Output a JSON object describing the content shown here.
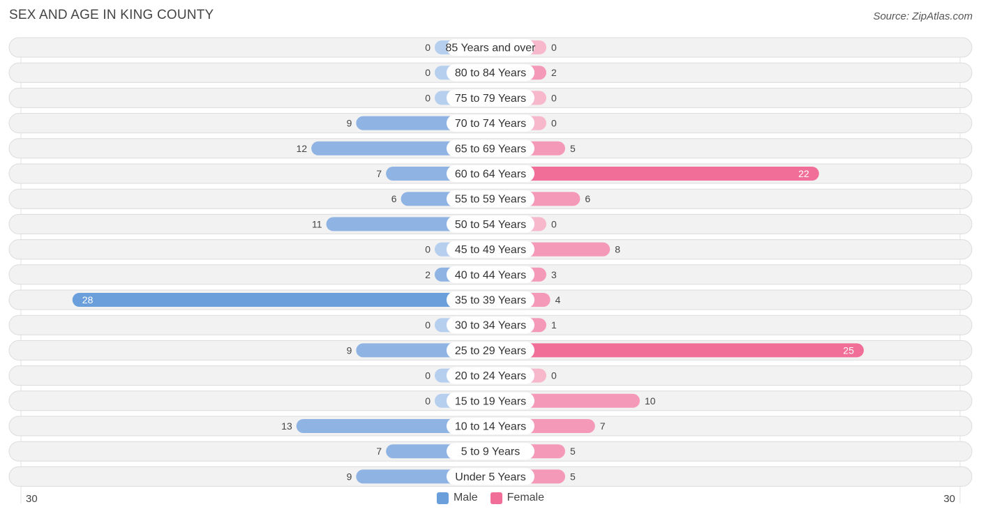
{
  "title": "SEX AND AGE IN KING COUNTY",
  "source": "Source: ZipAtlas.com",
  "colors": {
    "male": "#8fb4e3",
    "male_dark": "#6a9fdc",
    "female": "#f49ab8",
    "female_dark": "#f06e97",
    "row_bg": "#f2f2f2",
    "row_border": "#dcdcdc"
  },
  "chart_data": {
    "type": "bar",
    "orientation": "horizontal-diverging",
    "categories": [
      "85 Years and over",
      "80 to 84 Years",
      "75 to 79 Years",
      "70 to 74 Years",
      "65 to 69 Years",
      "60 to 64 Years",
      "55 to 59 Years",
      "50 to 54 Years",
      "45 to 49 Years",
      "40 to 44 Years",
      "35 to 39 Years",
      "30 to 34 Years",
      "25 to 29 Years",
      "20 to 24 Years",
      "15 to 19 Years",
      "10 to 14 Years",
      "5 to 9 Years",
      "Under 5 Years"
    ],
    "series": [
      {
        "name": "Male",
        "values": [
          0,
          0,
          0,
          9,
          12,
          7,
          6,
          11,
          0,
          2,
          28,
          0,
          9,
          0,
          0,
          13,
          7,
          9
        ]
      },
      {
        "name": "Female",
        "values": [
          0,
          2,
          0,
          0,
          5,
          22,
          6,
          0,
          8,
          3,
          4,
          1,
          25,
          0,
          10,
          7,
          5,
          5
        ]
      }
    ],
    "axis_max": 30,
    "axis_left_label": "30",
    "axis_right_label": "30",
    "legend": [
      "Male",
      "Female"
    ],
    "legend_position": "bottom-center"
  }
}
